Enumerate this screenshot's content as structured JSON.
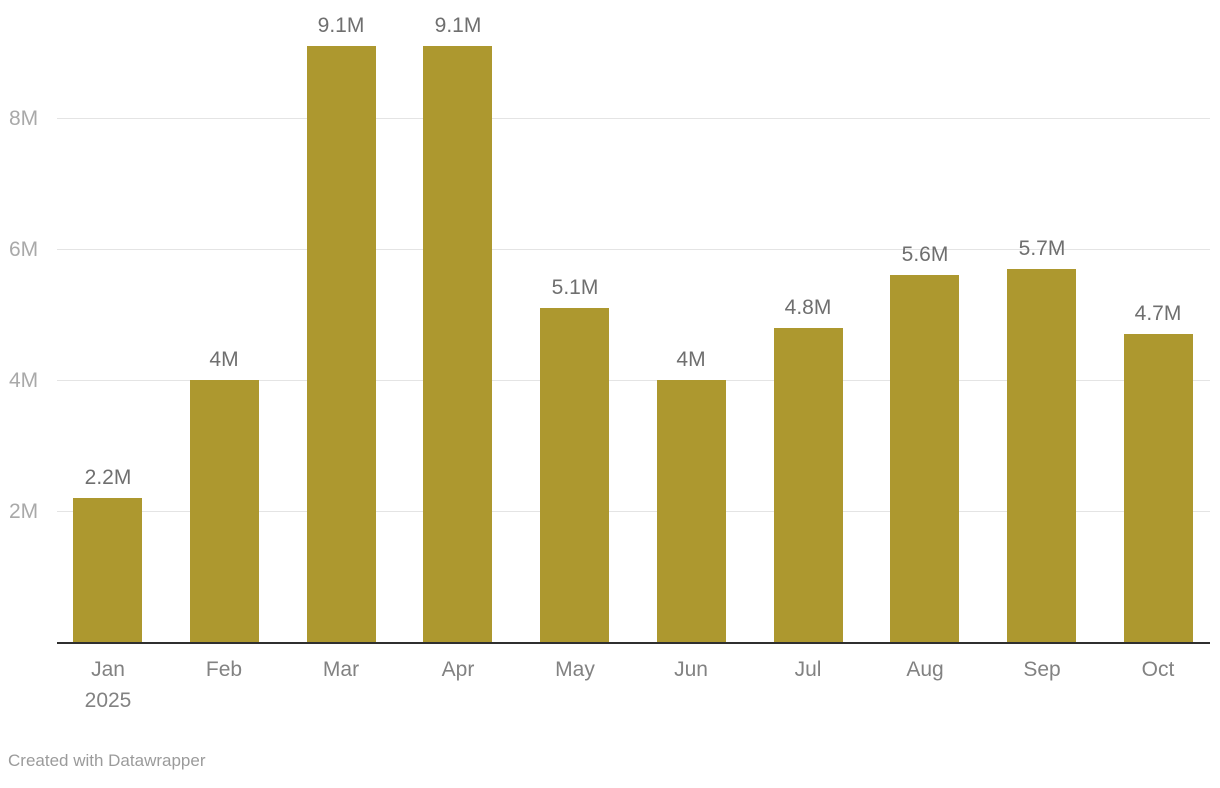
{
  "chart_data": {
    "type": "bar",
    "title": "",
    "xlabel": "",
    "ylabel": "",
    "categories": [
      "Jan",
      "Feb",
      "Mar",
      "Apr",
      "May",
      "Jun",
      "Jul",
      "Aug",
      "Sep",
      "Oct"
    ],
    "x_first_tick_year": "2025",
    "values": [
      2.2,
      4.0,
      9.1,
      9.1,
      5.1,
      4.0,
      4.8,
      5.6,
      5.7,
      4.7
    ],
    "value_labels": [
      "2.2M",
      "4M",
      "9.1M",
      "9.1M",
      "5.1M",
      "4M",
      "4.8M",
      "5.6M",
      "5.7M",
      "4.7M"
    ],
    "y_ticks": [
      {
        "value": 2,
        "label": "2M"
      },
      {
        "value": 4,
        "label": "4M"
      },
      {
        "value": 6,
        "label": "6M"
      },
      {
        "value": 8,
        "label": "8M"
      }
    ],
    "ylim": [
      0,
      9.3
    ],
    "grid": true,
    "legend": "none",
    "value_unit": "M",
    "colors": {
      "bar": "#ad982f",
      "gridline": "#e4e4e4",
      "baseline": "#2f2f2f",
      "value_label": "#6f6f6f",
      "y_tick_label": "#a9a9a9",
      "x_tick_label": "#828282",
      "attribution": "#9b9b9b"
    }
  },
  "footer": {
    "attribution": "Created with Datawrapper"
  }
}
